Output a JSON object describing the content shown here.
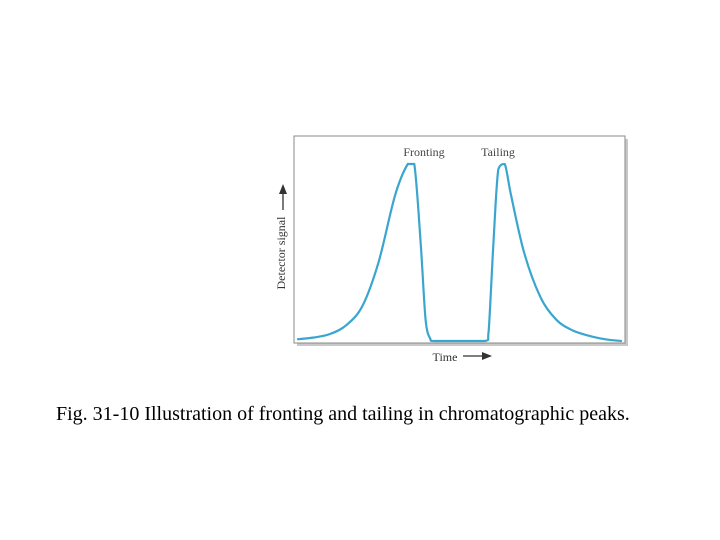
{
  "chart_data": {
    "type": "line",
    "title": "",
    "xlabel": "Time",
    "ylabel": "Detector signal",
    "grid": false,
    "legend": "none",
    "annotations": [
      {
        "id": "fronting",
        "text": "Fronting"
      },
      {
        "id": "tailing",
        "text": "Tailing"
      }
    ],
    "series": [
      {
        "color": "#3aa6cf",
        "x": [
          0,
          0.05,
          0.1,
          0.15,
          0.2,
          0.25,
          0.3,
          0.34,
          0.36,
          0.38,
          0.395,
          0.41,
          0.42,
          0.5,
          0.58,
          0.59,
          0.605,
          0.62,
          0.64,
          0.66,
          0.7,
          0.75,
          0.8,
          0.85,
          0.9,
          0.95,
          1.0
        ],
        "y": [
          0.01,
          0.02,
          0.04,
          0.09,
          0.2,
          0.45,
          0.82,
          1.0,
          1.0,
          0.55,
          0.12,
          0.01,
          0.0,
          0.0,
          0.0,
          0.05,
          0.55,
          0.97,
          1.0,
          0.82,
          0.5,
          0.25,
          0.12,
          0.06,
          0.03,
          0.01,
          0.0
        ],
        "xlim": [
          0,
          1
        ],
        "ylim": [
          0,
          1
        ]
      }
    ]
  },
  "caption": "Fig. 31-10 Illustration of fronting and tailing in chromatographic peaks."
}
